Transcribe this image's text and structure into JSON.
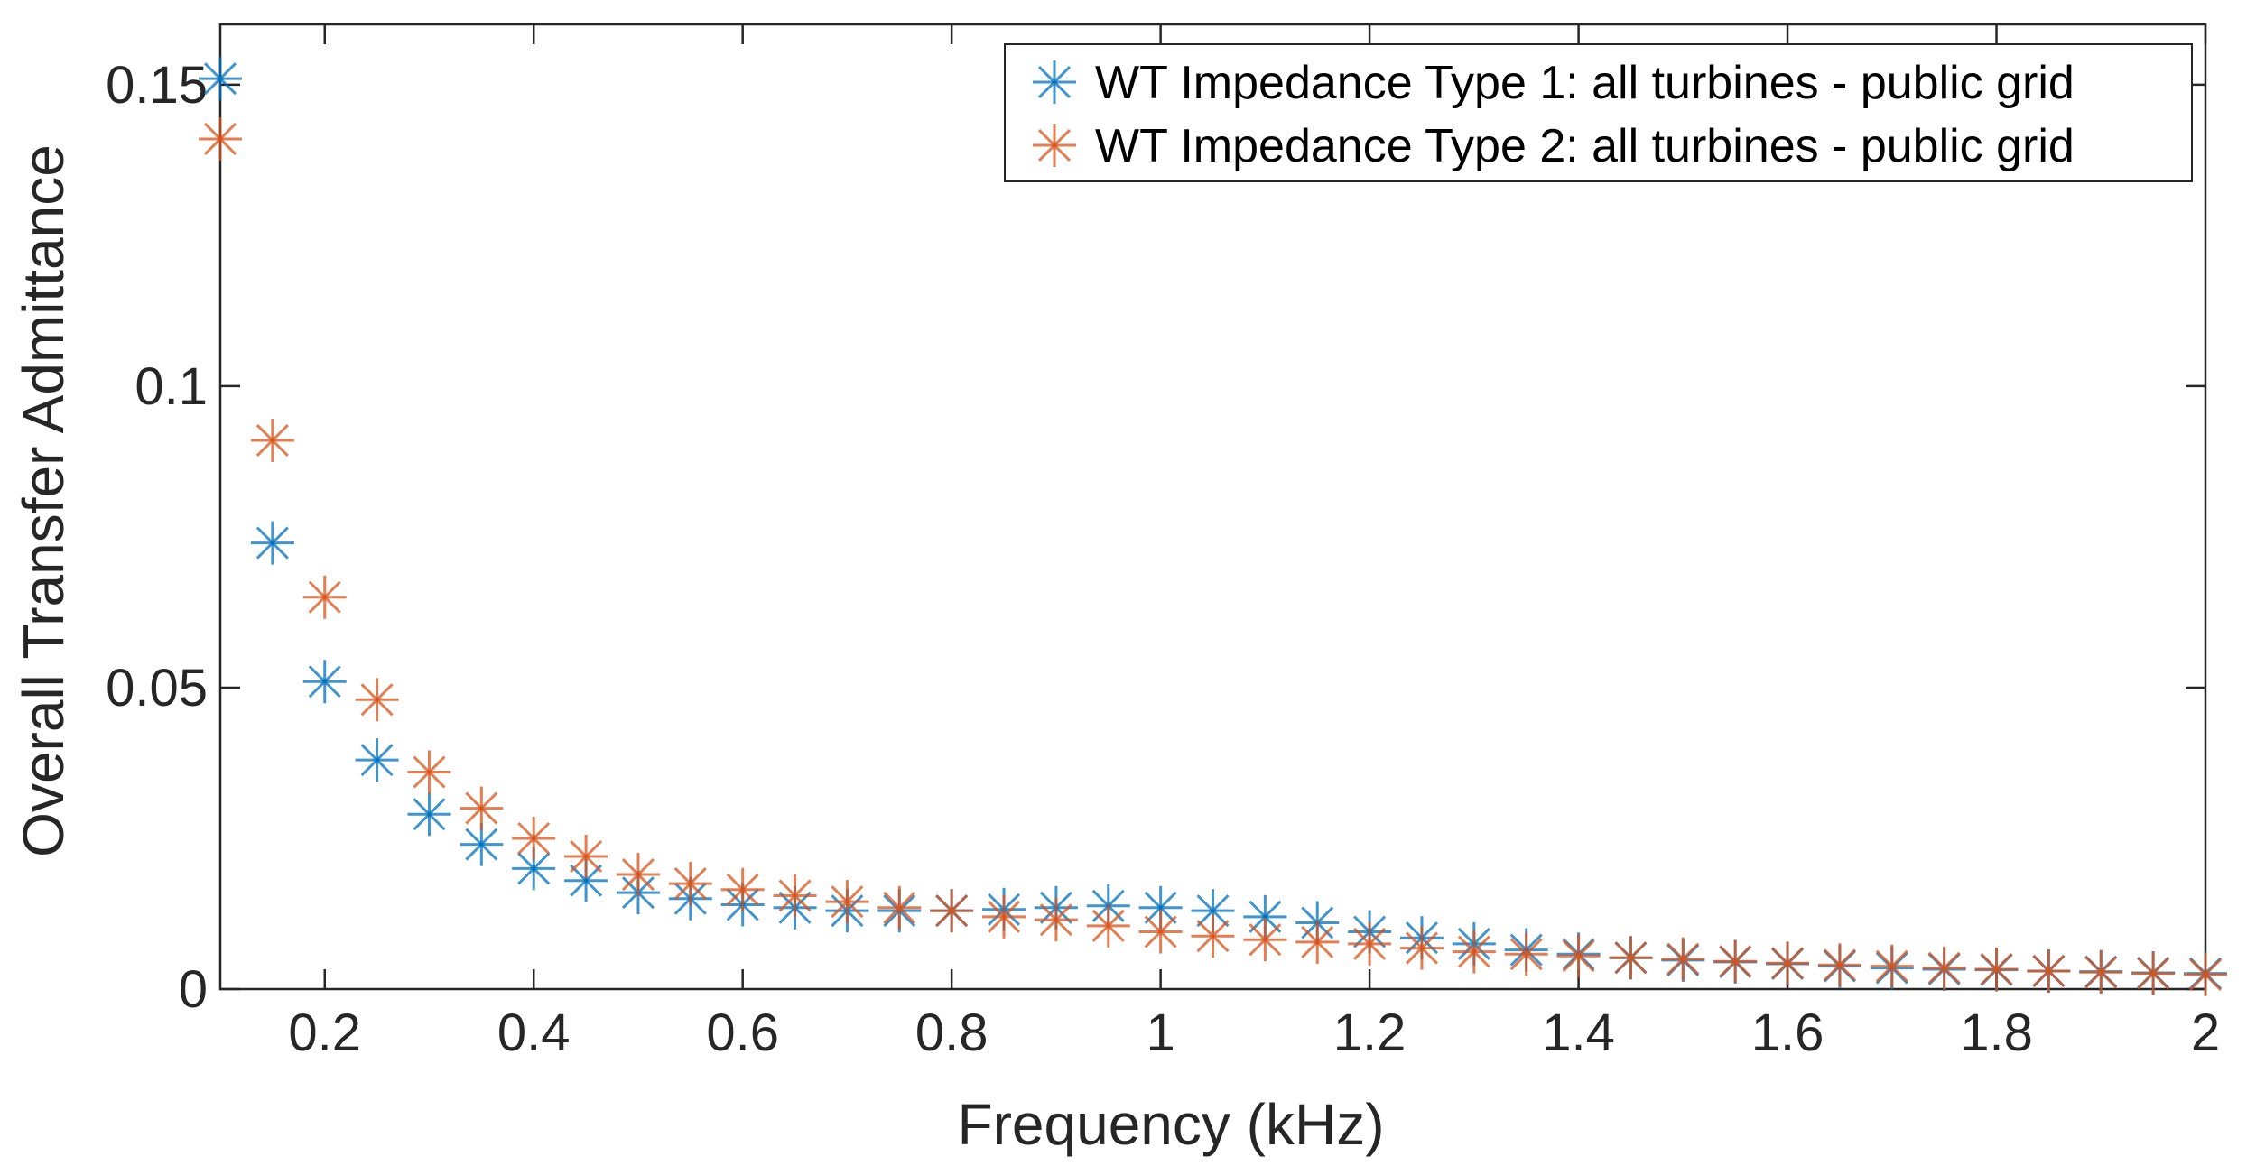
{
  "chart_data": {
    "type": "scatter",
    "title": "",
    "xlabel": "Frequency (kHz)",
    "ylabel": "Overall Transfer Admittance",
    "xlim": [
      0.1,
      2.0
    ],
    "ylim": [
      0,
      0.16
    ],
    "xticks": [
      0.2,
      0.4,
      0.6,
      0.8,
      1.0,
      1.2,
      1.4,
      1.6,
      1.8,
      2.0
    ],
    "xtick_labels": [
      "0.2",
      "0.4",
      "0.6",
      "0.8",
      "1",
      "1.2",
      "1.4",
      "1.6",
      "1.8",
      "2"
    ],
    "yticks": [
      0,
      0.05,
      0.1,
      0.15
    ],
    "ytick_labels": [
      "0",
      "0.05",
      "0.1",
      "0.15"
    ],
    "grid": false,
    "legend_position": "top-right",
    "marker": "asterisk",
    "x": [
      0.1,
      0.15,
      0.2,
      0.25,
      0.3,
      0.35,
      0.4,
      0.45,
      0.5,
      0.55,
      0.6,
      0.65,
      0.7,
      0.75,
      0.8,
      0.85,
      0.9,
      0.95,
      1.0,
      1.05,
      1.1,
      1.15,
      1.2,
      1.25,
      1.3,
      1.35,
      1.4,
      1.45,
      1.5,
      1.55,
      1.6,
      1.65,
      1.7,
      1.75,
      1.8,
      1.85,
      1.9,
      1.95,
      2.0
    ],
    "series": [
      {
        "name": "WT Impedance Type 1: all turbines - public grid",
        "color": "#0072BD",
        "values": [
          0.151,
          0.074,
          0.051,
          0.038,
          0.029,
          0.024,
          0.02,
          0.018,
          0.016,
          0.015,
          0.014,
          0.0135,
          0.013,
          0.013,
          0.013,
          0.0132,
          0.0135,
          0.0138,
          0.0135,
          0.013,
          0.012,
          0.011,
          0.0095,
          0.0085,
          0.0075,
          0.0065,
          0.0058,
          0.0052,
          0.0048,
          0.0045,
          0.0042,
          0.0038,
          0.0035,
          0.0033,
          0.0032,
          0.003,
          0.0029,
          0.0027,
          0.0026
        ]
      },
      {
        "name": "WT Impedance Type 2: all turbines - public grid",
        "color": "#D95319",
        "values": [
          0.141,
          0.091,
          0.065,
          0.048,
          0.036,
          0.03,
          0.025,
          0.022,
          0.019,
          0.0175,
          0.0165,
          0.0155,
          0.0145,
          0.0135,
          0.013,
          0.012,
          0.0115,
          0.0105,
          0.0095,
          0.0088,
          0.0082,
          0.0078,
          0.0075,
          0.0068,
          0.0062,
          0.0058,
          0.0055,
          0.0052,
          0.005,
          0.0046,
          0.0043,
          0.004,
          0.0038,
          0.0035,
          0.0033,
          0.003,
          0.0028,
          0.0026,
          0.0024
        ]
      }
    ]
  }
}
